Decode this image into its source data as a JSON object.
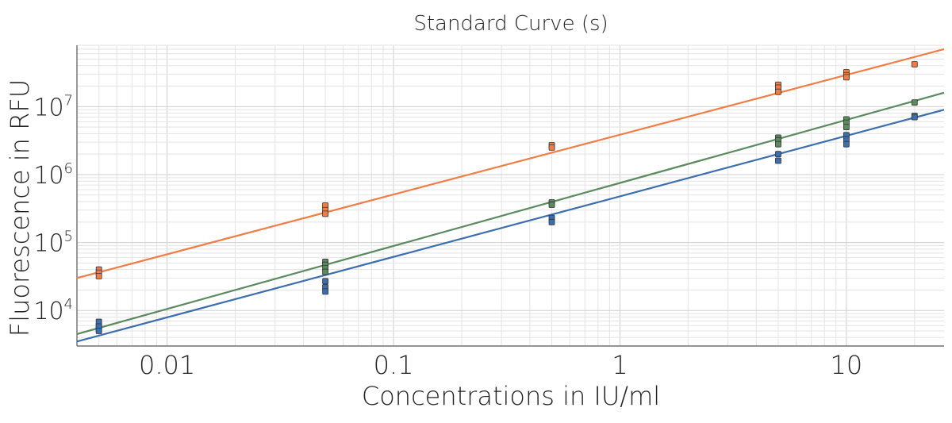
{
  "chart_data": {
    "type": "scatter",
    "title": "Standard Curve (s)",
    "xlabel": "Concentrations in IU/ml",
    "ylabel": "Fluorescence in RFU",
    "xscale": "log",
    "yscale": "log",
    "xlim": [
      0.004,
      27
    ],
    "ylim": [
      3000,
      80000000
    ],
    "grid": true,
    "x_ticks": [
      {
        "value": 0.01,
        "label": "0.01"
      },
      {
        "value": 0.1,
        "label": "0.1"
      },
      {
        "value": 1,
        "label": "1"
      },
      {
        "value": 10,
        "label": "10"
      }
    ],
    "y_ticks": [
      {
        "value": 10000,
        "base": "10",
        "exp": "4"
      },
      {
        "value": 100000,
        "base": "10",
        "exp": "5"
      },
      {
        "value": 1000000,
        "base": "10",
        "exp": "6"
      },
      {
        "value": 10000000,
        "base": "10",
        "exp": "7"
      }
    ],
    "series": [
      {
        "color": "#ef7d45",
        "fit_line": {
          "x": [
            0.004,
            27
          ],
          "y": [
            30000,
            70000000
          ]
        },
        "points": [
          {
            "x": 0.005,
            "y": 40000
          },
          {
            "x": 0.005,
            "y": 36000
          },
          {
            "x": 0.005,
            "y": 32000
          },
          {
            "x": 0.05,
            "y": 350000
          },
          {
            "x": 0.05,
            "y": 300000
          },
          {
            "x": 0.05,
            "y": 265000
          },
          {
            "x": 0.5,
            "y": 2700000
          },
          {
            "x": 0.5,
            "y": 2500000
          },
          {
            "x": 5,
            "y": 21000000
          },
          {
            "x": 5,
            "y": 19000000
          },
          {
            "x": 5,
            "y": 16500000
          },
          {
            "x": 10,
            "y": 32000000
          },
          {
            "x": 10,
            "y": 29000000
          },
          {
            "x": 10,
            "y": 27000000
          },
          {
            "x": 20,
            "y": 42000000
          }
        ]
      },
      {
        "color": "#5b8a5e",
        "fit_line": {
          "x": [
            0.004,
            27
          ],
          "y": [
            4500,
            16000000
          ]
        },
        "points": [
          {
            "x": 0.005,
            "y": 6000
          },
          {
            "x": 0.005,
            "y": 5300
          },
          {
            "x": 0.05,
            "y": 52000
          },
          {
            "x": 0.05,
            "y": 47000
          },
          {
            "x": 0.05,
            "y": 42000
          },
          {
            "x": 0.05,
            "y": 37000
          },
          {
            "x": 0.5,
            "y": 390000
          },
          {
            "x": 0.5,
            "y": 360000
          },
          {
            "x": 5,
            "y": 3500000
          },
          {
            "x": 5,
            "y": 3200000
          },
          {
            "x": 5,
            "y": 2800000
          },
          {
            "x": 10,
            "y": 6500000
          },
          {
            "x": 10,
            "y": 5800000
          },
          {
            "x": 10,
            "y": 5000000
          },
          {
            "x": 20,
            "y": 11500000
          }
        ]
      },
      {
        "color": "#3c6eae",
        "fit_line": {
          "x": [
            0.004,
            27
          ],
          "y": [
            3500,
            9000000
          ]
        },
        "points": [
          {
            "x": 0.005,
            "y": 6800
          },
          {
            "x": 0.005,
            "y": 5800
          },
          {
            "x": 0.005,
            "y": 5000
          },
          {
            "x": 0.05,
            "y": 27000
          },
          {
            "x": 0.05,
            "y": 22000
          },
          {
            "x": 0.05,
            "y": 19000
          },
          {
            "x": 0.5,
            "y": 230000
          },
          {
            "x": 0.5,
            "y": 200000
          },
          {
            "x": 5,
            "y": 2000000
          },
          {
            "x": 5,
            "y": 1600000
          },
          {
            "x": 10,
            "y": 3800000
          },
          {
            "x": 10,
            "y": 3300000
          },
          {
            "x": 10,
            "y": 2800000
          },
          {
            "x": 20,
            "y": 7300000
          },
          {
            "x": 20,
            "y": 7000000
          }
        ]
      }
    ]
  }
}
